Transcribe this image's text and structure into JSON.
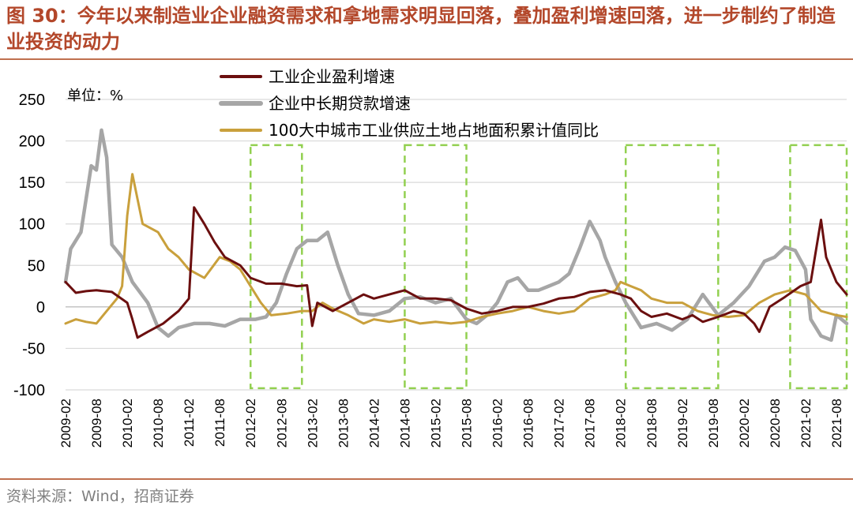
{
  "header": {
    "title": "图 30：今年以来制造业企业融资需求和拿地需求明显回落，叠加盈利增速回落，进一步制约了制造业投资的动力"
  },
  "footer": {
    "source": "资料来源：Wind，招商证券"
  },
  "chart_data": {
    "type": "line",
    "unit_label": "单位：%",
    "xlabel": "",
    "ylabel": "",
    "ylim": [
      -100,
      250
    ],
    "yticks": [
      250,
      200,
      150,
      100,
      50,
      0,
      -50,
      -100
    ],
    "x_start": "2009-02",
    "x_end": "2021-10",
    "xticks": [
      "2009-02",
      "2009-08",
      "2010-02",
      "2010-08",
      "2011-02",
      "2011-08",
      "2012-02",
      "2012-08",
      "2013-02",
      "2013-08",
      "2014-02",
      "2014-08",
      "2015-02",
      "2015-08",
      "2016-02",
      "2016-08",
      "2017-02",
      "2017-08",
      "2018-02",
      "2018-08",
      "2019-02",
      "2019-08",
      "2020-02",
      "2020-08",
      "2021-02",
      "2021-08"
    ],
    "grid": true,
    "legend_position": "top",
    "series": [
      {
        "name": "工业企业盈利增速",
        "color": "#6b0f0f",
        "points": [
          [
            "2009-02",
            30
          ],
          [
            "2009-04",
            17
          ],
          [
            "2009-06",
            19
          ],
          [
            "2009-08",
            20
          ],
          [
            "2009-11",
            18
          ],
          [
            "2010-02",
            5
          ],
          [
            "2010-03",
            -15
          ],
          [
            "2010-04",
            -37
          ],
          [
            "2010-06",
            -30
          ],
          [
            "2010-09",
            -20
          ],
          [
            "2010-12",
            -5
          ],
          [
            "2011-02",
            10
          ],
          [
            "2011-03",
            120
          ],
          [
            "2011-05",
            100
          ],
          [
            "2011-07",
            78
          ],
          [
            "2011-09",
            60
          ],
          [
            "2011-12",
            50
          ],
          [
            "2012-02",
            35
          ],
          [
            "2012-05",
            28
          ],
          [
            "2012-08",
            28
          ],
          [
            "2012-11",
            25
          ],
          [
            "2013-01",
            26
          ],
          [
            "2013-02",
            -23
          ],
          [
            "2013-03",
            5
          ],
          [
            "2013-06",
            -5
          ],
          [
            "2013-09",
            5
          ],
          [
            "2013-12",
            15
          ],
          [
            "2014-02",
            10
          ],
          [
            "2014-05",
            15
          ],
          [
            "2014-08",
            20
          ],
          [
            "2014-11",
            10
          ],
          [
            "2015-02",
            10
          ],
          [
            "2015-05",
            8
          ],
          [
            "2015-08",
            -2
          ],
          [
            "2015-11",
            -8
          ],
          [
            "2016-02",
            -5
          ],
          [
            "2016-05",
            0
          ],
          [
            "2016-08",
            0
          ],
          [
            "2016-11",
            4
          ],
          [
            "2017-02",
            10
          ],
          [
            "2017-05",
            12
          ],
          [
            "2017-08",
            18
          ],
          [
            "2017-11",
            20
          ],
          [
            "2018-02",
            15
          ],
          [
            "2018-04",
            10
          ],
          [
            "2018-06",
            -5
          ],
          [
            "2018-08",
            -12
          ],
          [
            "2018-11",
            -8
          ],
          [
            "2019-02",
            -15
          ],
          [
            "2019-04",
            -10
          ],
          [
            "2019-06",
            -18
          ],
          [
            "2019-09",
            -12
          ],
          [
            "2019-12",
            -5
          ],
          [
            "2020-02",
            -8
          ],
          [
            "2020-04",
            -20
          ],
          [
            "2020-05",
            -30
          ],
          [
            "2020-07",
            0
          ],
          [
            "2020-10",
            12
          ],
          [
            "2021-01",
            25
          ],
          [
            "2021-03",
            30
          ],
          [
            "2021-05",
            105
          ],
          [
            "2021-06",
            60
          ],
          [
            "2021-08",
            30
          ],
          [
            "2021-10",
            15
          ]
        ]
      },
      {
        "name": "企业中长期贷款增速",
        "color": "#a6a6a6",
        "points": [
          [
            "2009-02",
            30
          ],
          [
            "2009-03",
            70
          ],
          [
            "2009-05",
            90
          ],
          [
            "2009-07",
            170
          ],
          [
            "2009-08",
            165
          ],
          [
            "2009-09",
            213
          ],
          [
            "2009-10",
            180
          ],
          [
            "2009-11",
            75
          ],
          [
            "2010-01",
            60
          ],
          [
            "2010-03",
            30
          ],
          [
            "2010-06",
            5
          ],
          [
            "2010-08",
            -25
          ],
          [
            "2010-10",
            -35
          ],
          [
            "2010-12",
            -25
          ],
          [
            "2011-03",
            -20
          ],
          [
            "2011-06",
            -20
          ],
          [
            "2011-09",
            -23
          ],
          [
            "2011-12",
            -15
          ],
          [
            "2012-03",
            -15
          ],
          [
            "2012-05",
            -12
          ],
          [
            "2012-07",
            5
          ],
          [
            "2012-09",
            40
          ],
          [
            "2012-11",
            70
          ],
          [
            "2013-01",
            80
          ],
          [
            "2013-03",
            80
          ],
          [
            "2013-05",
            90
          ],
          [
            "2013-07",
            50
          ],
          [
            "2013-09",
            15
          ],
          [
            "2013-11",
            -8
          ],
          [
            "2014-02",
            -10
          ],
          [
            "2014-05",
            -5
          ],
          [
            "2014-08",
            10
          ],
          [
            "2014-11",
            12
          ],
          [
            "2015-02",
            5
          ],
          [
            "2015-05",
            10
          ],
          [
            "2015-08",
            -15
          ],
          [
            "2015-10",
            -20
          ],
          [
            "2015-12",
            -10
          ],
          [
            "2016-02",
            5
          ],
          [
            "2016-04",
            30
          ],
          [
            "2016-06",
            35
          ],
          [
            "2016-08",
            20
          ],
          [
            "2016-10",
            20
          ],
          [
            "2016-12",
            25
          ],
          [
            "2017-02",
            30
          ],
          [
            "2017-04",
            40
          ],
          [
            "2017-06",
            70
          ],
          [
            "2017-08",
            103
          ],
          [
            "2017-10",
            80
          ],
          [
            "2017-11",
            60
          ],
          [
            "2018-01",
            30
          ],
          [
            "2018-03",
            5
          ],
          [
            "2018-06",
            -25
          ],
          [
            "2018-09",
            -20
          ],
          [
            "2018-12",
            -28
          ],
          [
            "2019-03",
            -15
          ],
          [
            "2019-06",
            15
          ],
          [
            "2019-09",
            -10
          ],
          [
            "2019-12",
            5
          ],
          [
            "2020-03",
            25
          ],
          [
            "2020-06",
            55
          ],
          [
            "2020-08",
            60
          ],
          [
            "2020-10",
            72
          ],
          [
            "2020-12",
            68
          ],
          [
            "2021-02",
            45
          ],
          [
            "2021-03",
            -15
          ],
          [
            "2021-05",
            -35
          ],
          [
            "2021-07",
            -40
          ],
          [
            "2021-08",
            -10
          ],
          [
            "2021-10",
            -20
          ]
        ]
      },
      {
        "name": "100大中城市工业供应土地占地面积累计值同比",
        "color": "#c9a03c",
        "points": [
          [
            "2009-02",
            -20
          ],
          [
            "2009-04",
            -15
          ],
          [
            "2009-06",
            -18
          ],
          [
            "2009-08",
            -20
          ],
          [
            "2009-10",
            -5
          ],
          [
            "2009-12",
            10
          ],
          [
            "2010-01",
            25
          ],
          [
            "2010-02",
            110
          ],
          [
            "2010-03",
            160
          ],
          [
            "2010-05",
            100
          ],
          [
            "2010-08",
            90
          ],
          [
            "2010-10",
            70
          ],
          [
            "2010-12",
            60
          ],
          [
            "2011-02",
            45
          ],
          [
            "2011-05",
            35
          ],
          [
            "2011-08",
            60
          ],
          [
            "2011-10",
            55
          ],
          [
            "2011-12",
            45
          ],
          [
            "2012-02",
            25
          ],
          [
            "2012-04",
            5
          ],
          [
            "2012-06",
            -10
          ],
          [
            "2012-09",
            -8
          ],
          [
            "2012-12",
            -5
          ],
          [
            "2013-02",
            -5
          ],
          [
            "2013-04",
            5
          ],
          [
            "2013-06",
            -2
          ],
          [
            "2013-09",
            -10
          ],
          [
            "2013-12",
            -20
          ],
          [
            "2014-02",
            -15
          ],
          [
            "2014-05",
            -18
          ],
          [
            "2014-08",
            -15
          ],
          [
            "2014-11",
            -20
          ],
          [
            "2015-02",
            -18
          ],
          [
            "2015-05",
            -20
          ],
          [
            "2015-08",
            -18
          ],
          [
            "2015-11",
            -12
          ],
          [
            "2016-02",
            -8
          ],
          [
            "2016-05",
            -5
          ],
          [
            "2016-08",
            0
          ],
          [
            "2016-11",
            -5
          ],
          [
            "2017-02",
            -8
          ],
          [
            "2017-05",
            -5
          ],
          [
            "2017-08",
            10
          ],
          [
            "2017-11",
            15
          ],
          [
            "2018-01",
            20
          ],
          [
            "2018-02",
            30
          ],
          [
            "2018-04",
            25
          ],
          [
            "2018-06",
            20
          ],
          [
            "2018-08",
            10
          ],
          [
            "2018-11",
            5
          ],
          [
            "2019-02",
            5
          ],
          [
            "2019-05",
            -5
          ],
          [
            "2019-08",
            -10
          ],
          [
            "2019-11",
            -12
          ],
          [
            "2020-02",
            -10
          ],
          [
            "2020-05",
            5
          ],
          [
            "2020-08",
            15
          ],
          [
            "2020-11",
            20
          ],
          [
            "2021-02",
            15
          ],
          [
            "2021-05",
            -5
          ],
          [
            "2021-08",
            -10
          ],
          [
            "2021-10",
            -12
          ]
        ]
      }
    ],
    "highlight_ranges": [
      {
        "x_start": "2012-02",
        "x_end": "2012-12",
        "y_top": 195,
        "y_bottom": -98,
        "color": "#92d050"
      },
      {
        "x_start": "2014-08",
        "x_end": "2015-08",
        "y_top": 195,
        "y_bottom": -98,
        "color": "#92d050"
      },
      {
        "x_start": "2018-03",
        "x_end": "2019-09",
        "y_top": 195,
        "y_bottom": -98,
        "color": "#92d050"
      },
      {
        "x_start": "2020-11",
        "x_end": "2021-10",
        "y_top": 195,
        "y_bottom": -98,
        "color": "#92d050"
      }
    ]
  }
}
